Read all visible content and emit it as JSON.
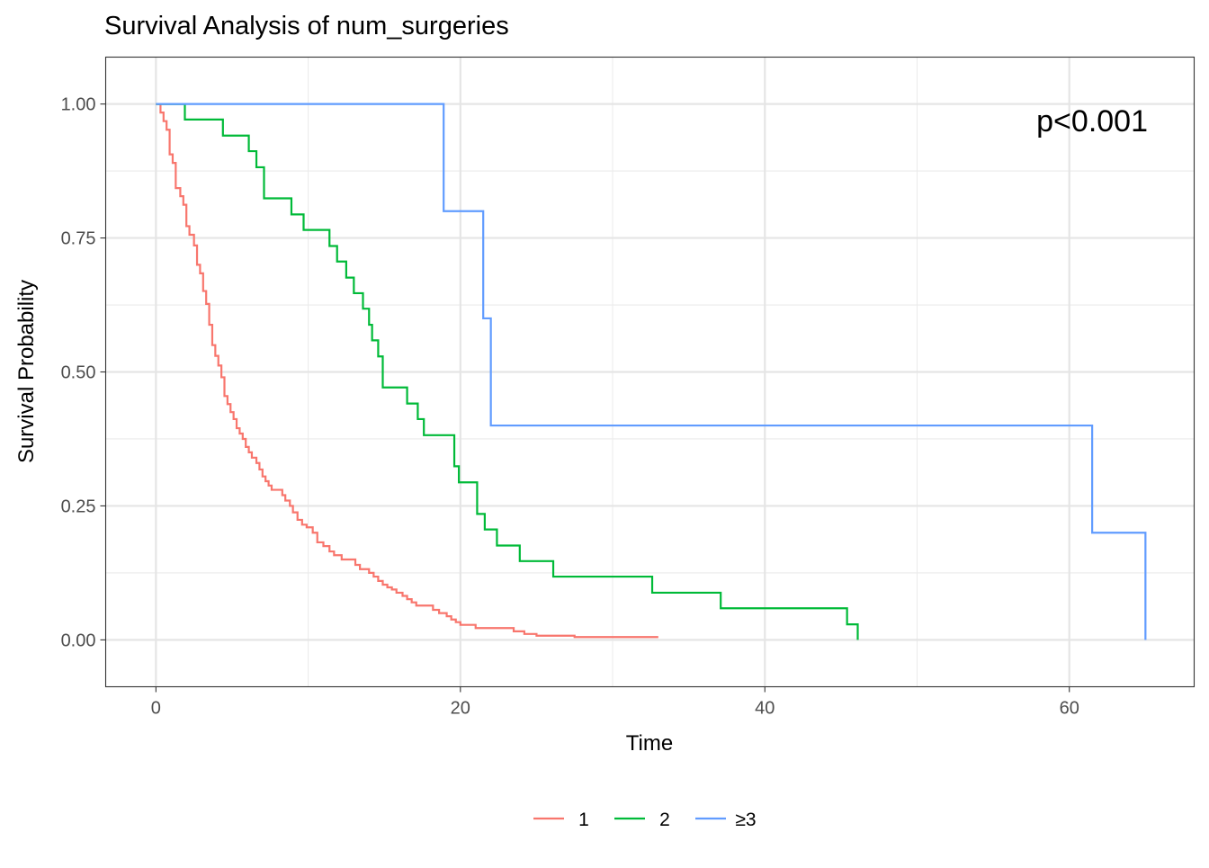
{
  "chart_data": {
    "type": "line",
    "step": true,
    "title": "Survival Analysis of num_surgeries",
    "xlabel": "Time",
    "ylabel": "Survival Probability",
    "xlim": [
      -3.3,
      68.2
    ],
    "ylim": [
      -0.0875,
      1.0875
    ],
    "x_ticks": [
      0,
      20,
      40,
      60
    ],
    "x_tick_labels": [
      "0",
      "20",
      "40",
      "60"
    ],
    "y_ticks": [
      0,
      0.25,
      0.5,
      0.75,
      1
    ],
    "y_tick_labels": [
      "0.00",
      "0.25",
      "0.50",
      "0.75",
      "1.00"
    ],
    "grid": true,
    "legend_position": "bottom",
    "annotation": "p<0.001",
    "series": [
      {
        "name": "1",
        "color": "#F8766D",
        "x": [
          0,
          0.3,
          0.5,
          0.7,
          0.9,
          1.1,
          1.3,
          1.6,
          1.8,
          2.0,
          2.2,
          2.5,
          2.7,
          2.9,
          3.1,
          3.3,
          3.5,
          3.7,
          3.9,
          4.1,
          4.3,
          4.5,
          4.7,
          4.9,
          5.1,
          5.3,
          5.5,
          5.7,
          5.9,
          6.1,
          6.3,
          6.6,
          6.8,
          7.0,
          7.2,
          7.4,
          7.6,
          8.3,
          8.5,
          8.8,
          9.0,
          9.3,
          9.6,
          9.9,
          10.3,
          10.6,
          11.0,
          11.4,
          11.7,
          12.2,
          13.1,
          13.4,
          14.0,
          14.3,
          14.6,
          14.9,
          15.2,
          15.5,
          15.8,
          16.2,
          16.5,
          16.8,
          17.1,
          18.2,
          18.6,
          19.1,
          19.4,
          19.7,
          20.0,
          21.0,
          23.5,
          24.2,
          25.0,
          27.5,
          28.0,
          29.8,
          33.0
        ],
        "y": [
          1.0,
          0.984,
          0.968,
          0.952,
          0.906,
          0.89,
          0.843,
          0.828,
          0.812,
          0.772,
          0.756,
          0.736,
          0.7,
          0.684,
          0.651,
          0.627,
          0.588,
          0.55,
          0.53,
          0.512,
          0.49,
          0.455,
          0.44,
          0.425,
          0.412,
          0.395,
          0.385,
          0.375,
          0.36,
          0.35,
          0.34,
          0.33,
          0.318,
          0.305,
          0.296,
          0.288,
          0.28,
          0.27,
          0.26,
          0.25,
          0.238,
          0.224,
          0.215,
          0.21,
          0.2,
          0.182,
          0.175,
          0.165,
          0.158,
          0.15,
          0.14,
          0.132,
          0.125,
          0.118,
          0.11,
          0.103,
          0.098,
          0.094,
          0.088,
          0.082,
          0.076,
          0.07,
          0.064,
          0.056,
          0.05,
          0.044,
          0.038,
          0.033,
          0.028,
          0.022,
          0.016,
          0.011,
          0.0078,
          0.0052,
          0.0052,
          0.0052,
          0.0052
        ]
      },
      {
        "name": "2",
        "color": "#00BA38",
        "x": [
          0,
          1.9,
          4.4,
          6.1,
          6.6,
          7.1,
          8.9,
          9.7,
          11.4,
          11.9,
          12.5,
          13.0,
          13.6,
          14.0,
          14.2,
          14.6,
          14.9,
          16.5,
          17.2,
          17.6,
          19.6,
          19.9,
          21.1,
          21.6,
          22.4,
          23.9,
          26.1,
          32.6,
          37.1,
          45.4,
          46.1
        ],
        "y": [
          1.0,
          0.971,
          0.941,
          0.912,
          0.882,
          0.824,
          0.794,
          0.765,
          0.735,
          0.706,
          0.676,
          0.647,
          0.618,
          0.588,
          0.559,
          0.529,
          0.471,
          0.441,
          0.412,
          0.382,
          0.324,
          0.294,
          0.235,
          0.206,
          0.176,
          0.147,
          0.118,
          0.088,
          0.059,
          0.029,
          0.0
        ]
      },
      {
        "name": "≥3",
        "color": "#619CFF",
        "x": [
          0,
          18.9,
          21.5,
          22.0,
          61.5,
          65.0
        ],
        "y": [
          1.0,
          0.8,
          0.6,
          0.4,
          0.2,
          0.0
        ]
      }
    ]
  }
}
